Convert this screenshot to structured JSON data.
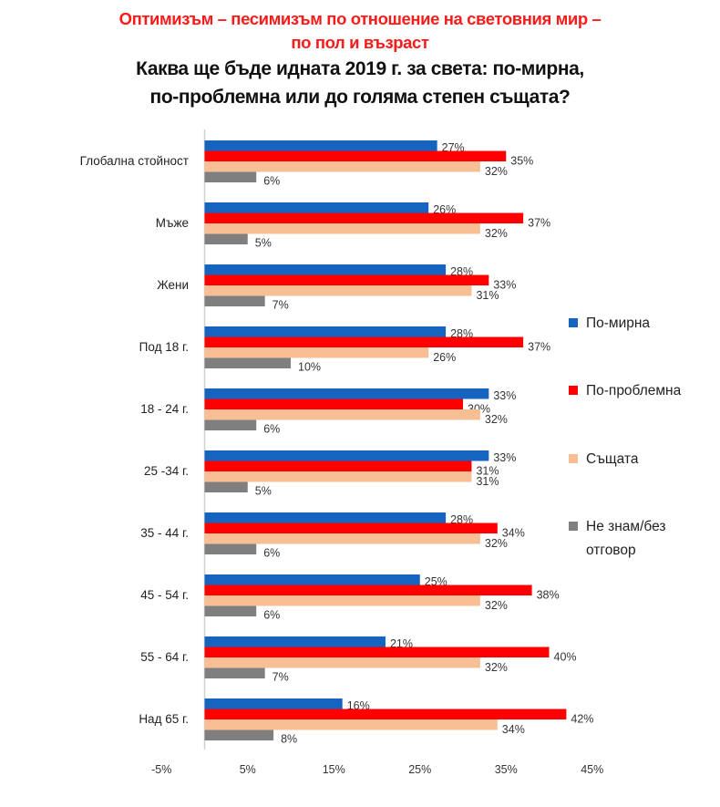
{
  "chart_data": {
    "type": "bar",
    "orientation": "horizontal",
    "title_line1": "Оптимизъм – песимизъм по отношение на световния мир –",
    "title_line2": "по пол и възраст",
    "subtitle_line1": "Каква ще бъде идната 2019 г. за света: по-мирна,",
    "subtitle_line2": "по-проблемна или до голяма степен същата?",
    "categories": [
      "Глобална стойност",
      "Мъже",
      "Жени",
      "Под 18 г.",
      "18 - 24 г.",
      "25 -34 г.",
      "35 - 44 г.",
      "45 - 54 г.",
      "55 - 64 г.",
      "Над 65 г."
    ],
    "series": [
      {
        "name": "По-мирна",
        "color": "#1565c0",
        "values": [
          27,
          26,
          28,
          28,
          33,
          33,
          28,
          25,
          21,
          16
        ]
      },
      {
        "name": "По-проблемна",
        "color": "#ff0000",
        "values": [
          35,
          37,
          33,
          37,
          30,
          31,
          34,
          38,
          40,
          42
        ]
      },
      {
        "name": "Същата",
        "color": "#f8bf95",
        "values": [
          32,
          32,
          31,
          26,
          32,
          31,
          32,
          32,
          32,
          34
        ]
      },
      {
        "name": "Не знам/без отговор",
        "color": "#7f7f7f",
        "values": [
          6,
          5,
          7,
          10,
          6,
          5,
          6,
          6,
          7,
          8
        ]
      }
    ],
    "legend_lines": [
      [
        "По-мирна"
      ],
      [
        "По-проблемна"
      ],
      [
        "Същата"
      ],
      [
        "Не знам/без",
        "отговор"
      ]
    ],
    "xlim": [
      -5,
      45
    ],
    "xticks": [
      -5,
      5,
      15,
      25,
      35,
      45
    ],
    "xtick_labels": [
      "-5%",
      "5%",
      "15%",
      "25%",
      "35%",
      "45%"
    ],
    "legend_position": "right",
    "grid": false
  }
}
